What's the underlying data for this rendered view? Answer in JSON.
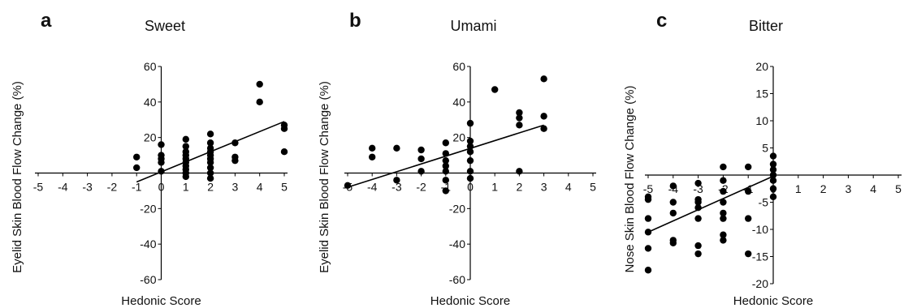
{
  "chart_data": [
    {
      "type": "scatter",
      "panel_letter": "a",
      "title": "Sweet",
      "xlabel": "Hedonic Score",
      "ylabel": "Eyelid Skin Blood Flow Change (%)",
      "xlim": [
        -5,
        5
      ],
      "ylim": [
        -60,
        60
      ],
      "xticks": [
        -5,
        -4,
        -3,
        -2,
        -1,
        0,
        1,
        2,
        3,
        4,
        5
      ],
      "xtick_labels": [
        "-5",
        "-4",
        "-3",
        "-2",
        "-1",
        "0",
        "1",
        "2",
        "3",
        "4",
        "5"
      ],
      "yticks": [
        -60,
        -40,
        -20,
        20,
        40,
        60
      ],
      "ytick_labels": [
        "-60",
        "-40",
        "-20",
        "20",
        "40",
        "60"
      ],
      "grid": false,
      "fit_line": [
        [
          -1,
          -5
        ],
        [
          5,
          29
        ]
      ],
      "points": [
        [
          -1,
          9
        ],
        [
          -1,
          3
        ],
        [
          0,
          16
        ],
        [
          0,
          10
        ],
        [
          0,
          8
        ],
        [
          0,
          6
        ],
        [
          0,
          1
        ],
        [
          1,
          19
        ],
        [
          1,
          15
        ],
        [
          1,
          12
        ],
        [
          1,
          10
        ],
        [
          1,
          8
        ],
        [
          1,
          6
        ],
        [
          1,
          4
        ],
        [
          1,
          2
        ],
        [
          1,
          0
        ],
        [
          1,
          -2
        ],
        [
          2,
          22
        ],
        [
          2,
          17
        ],
        [
          2,
          14
        ],
        [
          2,
          12
        ],
        [
          2,
          10
        ],
        [
          2,
          8
        ],
        [
          2,
          6
        ],
        [
          2,
          3
        ],
        [
          2,
          0
        ],
        [
          2,
          -3
        ],
        [
          3,
          17
        ],
        [
          3,
          9
        ],
        [
          3,
          7
        ],
        [
          4,
          50
        ],
        [
          4,
          40
        ],
        [
          5,
          27
        ],
        [
          5,
          25
        ],
        [
          5,
          12
        ]
      ]
    },
    {
      "type": "scatter",
      "panel_letter": "b",
      "title": "Umami",
      "xlabel": "Hedonic Score",
      "ylabel": "Eyelid Skin Blood Flow Change (%)",
      "xlim": [
        -5,
        5
      ],
      "ylim": [
        -60,
        60
      ],
      "xticks": [
        -5,
        -4,
        -3,
        -2,
        -1,
        0,
        1,
        2,
        3,
        4,
        5
      ],
      "xtick_labels": [
        "-5",
        "-4",
        "-3",
        "-2",
        "-1",
        "0",
        "1",
        "2",
        "3",
        "4",
        "5"
      ],
      "yticks": [
        -60,
        -40,
        -20,
        20,
        40,
        60
      ],
      "ytick_labels": [
        "-60",
        "-40",
        "-20",
        "20",
        "40",
        "60"
      ],
      "grid": false,
      "fit_line": [
        [
          -5,
          -8
        ],
        [
          3,
          27
        ]
      ],
      "points": [
        [
          -5,
          -7
        ],
        [
          -4,
          14
        ],
        [
          -4,
          9
        ],
        [
          -3,
          14
        ],
        [
          -3,
          -4
        ],
        [
          -2,
          13
        ],
        [
          -2,
          8
        ],
        [
          -2,
          1
        ],
        [
          -1,
          17
        ],
        [
          -1,
          11
        ],
        [
          -1,
          7
        ],
        [
          -1,
          4
        ],
        [
          -1,
          1
        ],
        [
          -1,
          -4
        ],
        [
          -1,
          -10
        ],
        [
          0,
          28
        ],
        [
          0,
          18
        ],
        [
          0,
          15
        ],
        [
          0,
          12
        ],
        [
          0,
          7
        ],
        [
          0,
          1
        ],
        [
          0,
          -3
        ],
        [
          1,
          47
        ],
        [
          2,
          34
        ],
        [
          2,
          31
        ],
        [
          2,
          27
        ],
        [
          2,
          1
        ],
        [
          3,
          53
        ],
        [
          3,
          32
        ],
        [
          3,
          25
        ]
      ]
    },
    {
      "type": "scatter",
      "panel_letter": "c",
      "title": "Bitter",
      "xlabel": "Hedonic Score",
      "ylabel": "Nose Skin Blood Flow Change (%)",
      "xlim": [
        -5,
        5
      ],
      "ylim": [
        -20,
        20
      ],
      "xticks": [
        -5,
        -4,
        -3,
        -2,
        -1,
        0,
        1,
        2,
        3,
        4,
        5
      ],
      "xtick_labels": [
        "-5",
        "-4",
        "-3",
        "-2",
        "-1",
        "0",
        "1",
        "2",
        "3",
        "4",
        "5"
      ],
      "yticks": [
        -20,
        -15,
        -10,
        -5,
        5,
        10,
        15,
        20
      ],
      "ytick_labels": [
        "-20",
        "-15",
        "-10",
        "-5",
        "5",
        "10",
        "15",
        "20"
      ],
      "grid": false,
      "fit_line": [
        [
          -5,
          -10.5
        ],
        [
          0,
          -0.2
        ]
      ],
      "points": [
        [
          -5,
          -4
        ],
        [
          -5,
          -4.5
        ],
        [
          -5,
          -8
        ],
        [
          -5,
          -10.5
        ],
        [
          -5,
          -13.5
        ],
        [
          -5,
          -17.5
        ],
        [
          -4,
          -2
        ],
        [
          -4,
          -5
        ],
        [
          -4,
          -7
        ],
        [
          -4,
          -12
        ],
        [
          -4,
          -12.5
        ],
        [
          -3,
          -1.5
        ],
        [
          -3,
          -4.5
        ],
        [
          -3,
          -5
        ],
        [
          -3,
          -6
        ],
        [
          -3,
          -8
        ],
        [
          -3,
          -13
        ],
        [
          -3,
          -14.5
        ],
        [
          -2,
          1.5
        ],
        [
          -2,
          -1
        ],
        [
          -2,
          -3
        ],
        [
          -2,
          -5
        ],
        [
          -2,
          -7
        ],
        [
          -2,
          -8
        ],
        [
          -2,
          -11
        ],
        [
          -2,
          -12
        ],
        [
          -1,
          1.5
        ],
        [
          -1,
          -3
        ],
        [
          -1,
          -8
        ],
        [
          -1,
          -14.5
        ],
        [
          0,
          3.5
        ],
        [
          0,
          2
        ],
        [
          0,
          1
        ],
        [
          0,
          0
        ],
        [
          0,
          -1
        ],
        [
          0,
          -2.5
        ],
        [
          0,
          -4
        ]
      ]
    }
  ]
}
